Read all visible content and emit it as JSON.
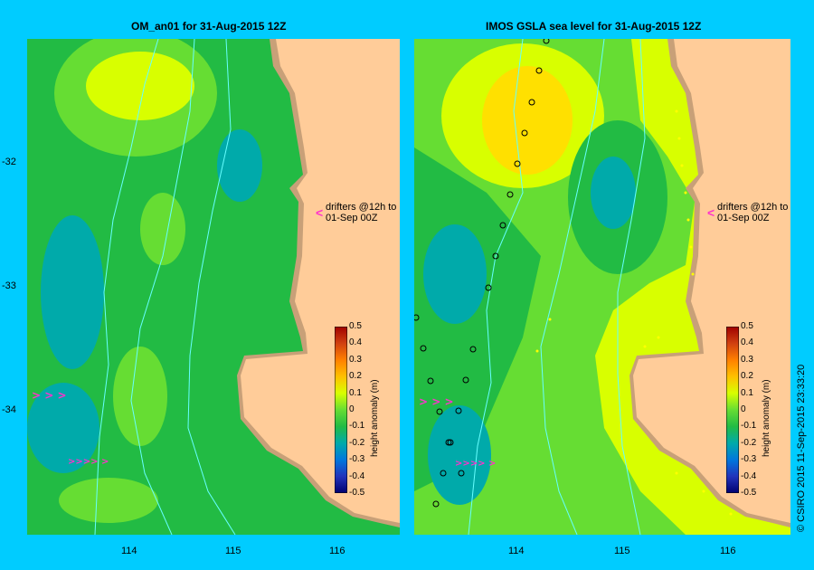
{
  "panels": [
    {
      "title": "OM_an01  for 31-Aug-2015 12Z"
    },
    {
      "title": "IMOS GSLA sea level  for 31-Aug-2015 12Z"
    }
  ],
  "x_ticks": [
    "114",
    "115",
    "116"
  ],
  "y_ticks": [
    "-32",
    "-33",
    "-34"
  ],
  "colorbar": {
    "title": "height anomaly (m)",
    "labels": [
      "0.5",
      "0.4",
      "0.3",
      "0.2",
      "0.1",
      "0",
      "-0.1",
      "-0.2",
      "-0.3",
      "-0.4",
      "-0.5"
    ],
    "colors": [
      "#a00000",
      "#d04010",
      "#ff8000",
      "#ffc000",
      "#d8ff00",
      "#66dd33",
      "#22bb44",
      "#00aaaa",
      "#0077dd",
      "#2233bb",
      "#000070"
    ]
  },
  "annotation": {
    "line1": "drifters @12h to",
    "line2": "01-Sep 00Z"
  },
  "credit": "© CSIRO 2015   11-Sep-2015 23:33:20",
  "colors": {
    "land": "#ffcc99",
    "shelf": "#c8a078",
    "background": "#00ccff",
    "drifter": "#ff33cc",
    "contour": "#66ffff"
  }
}
